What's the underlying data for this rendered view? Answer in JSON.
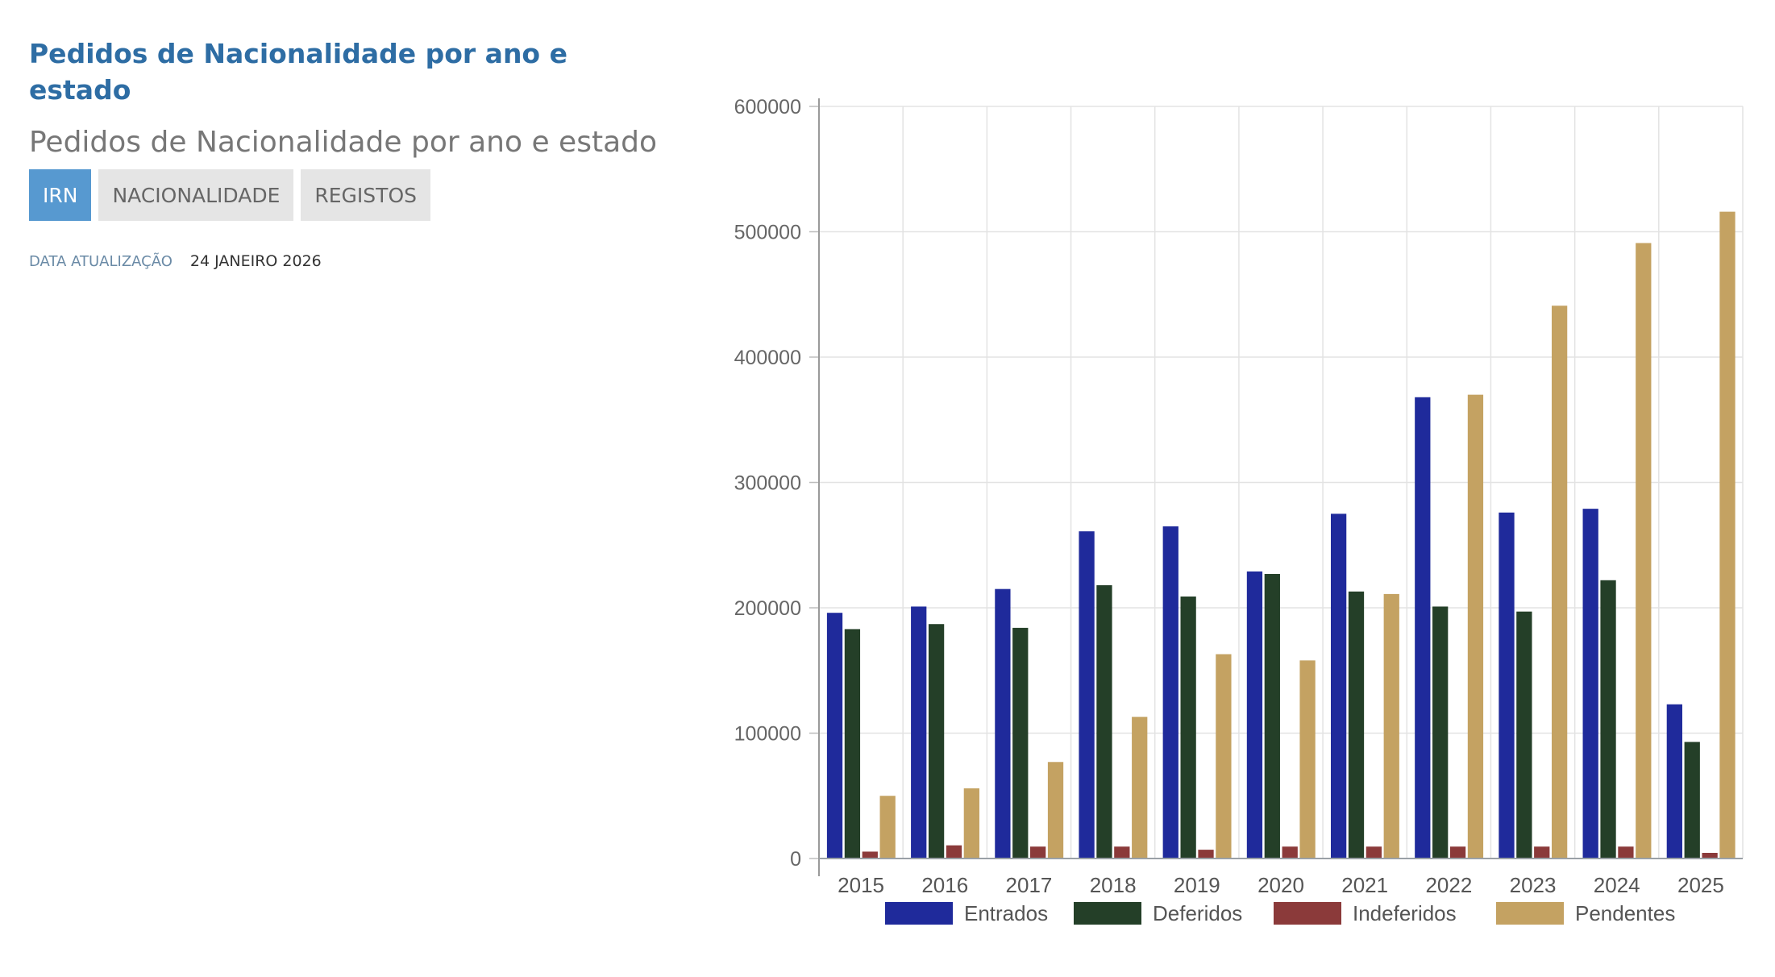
{
  "page": {
    "heading": "Pedidos de Nacionalidade por ano e estado",
    "subtitle": "Pedidos de Nacionalidade por ano e estado"
  },
  "tabs": [
    {
      "label": "IRN",
      "active": true
    },
    {
      "label": "NACIONALIDADE",
      "active": false
    },
    {
      "label": "REGISTOS",
      "active": false
    }
  ],
  "update": {
    "label": "DATA ATUALIZAÇÃO",
    "value": "24 JANEIRO 2026"
  },
  "chart_data": {
    "type": "bar",
    "categories": [
      "2015",
      "2016",
      "2017",
      "2018",
      "2019",
      "2020",
      "2021",
      "2022",
      "2023",
      "2024",
      "2025"
    ],
    "series": [
      {
        "name": "Entrados",
        "color": "#1f2a9b",
        "values": [
          196000,
          201000,
          215000,
          261000,
          265000,
          229000,
          275000,
          368000,
          276000,
          279000,
          123000
        ]
      },
      {
        "name": "Deferidos",
        "color": "#243f28",
        "values": [
          183000,
          187000,
          184000,
          218000,
          209000,
          227000,
          213000,
          201000,
          197000,
          222000,
          93000
        ]
      },
      {
        "name": "Indeferidos",
        "color": "#8b3a3a",
        "values": [
          5500,
          10500,
          9500,
          9500,
          7000,
          9500,
          9500,
          9500,
          9500,
          9500,
          4500
        ]
      },
      {
        "name": "Pendentes",
        "color": "#c4a262",
        "values": [
          50000,
          56000,
          77000,
          113000,
          163000,
          158000,
          211000,
          370000,
          441000,
          491000,
          516000
        ]
      }
    ],
    "yticks": [
      "0",
      "100000",
      "200000",
      "300000",
      "400000",
      "500000",
      "600000"
    ],
    "ylim": [
      0,
      600000
    ],
    "grid": true,
    "legend": "bottom"
  }
}
